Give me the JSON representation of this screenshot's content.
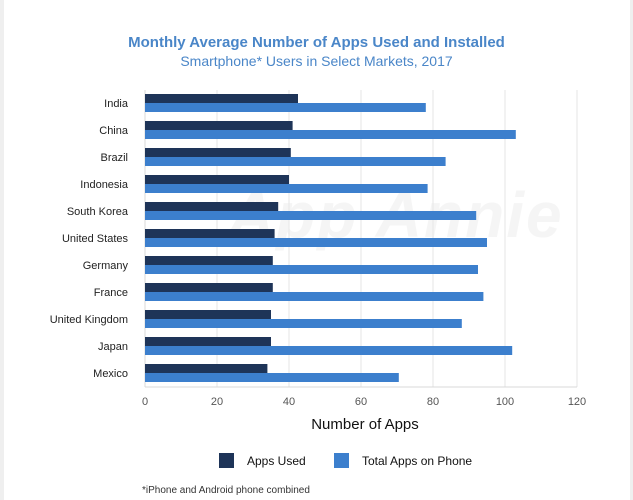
{
  "title": "Monthly Average Number of Apps Used and Installed",
  "subtitle": "Smartphone* Users in Select Markets, 2017",
  "footnote": "*iPhone and Android phone combined",
  "watermark": "App Annie",
  "colors": {
    "apps_used": "#1e3458",
    "total_apps": "#3c7fcd",
    "title": "#4a86c8"
  },
  "chart_data": {
    "type": "bar",
    "orientation": "horizontal",
    "categories": [
      "India",
      "China",
      "Brazil",
      "Indonesia",
      "South Korea",
      "United States",
      "Germany",
      "France",
      "United Kingdom",
      "Japan",
      "Mexico"
    ],
    "series": [
      {
        "name": "Apps Used",
        "values": [
          42.5,
          41,
          40.5,
          40,
          37,
          36,
          35.5,
          35.5,
          35,
          35,
          34
        ]
      },
      {
        "name": "Total Apps on Phone",
        "values": [
          78,
          103,
          83.5,
          78.5,
          92,
          95,
          92.5,
          94,
          88,
          102,
          70.5
        ]
      }
    ],
    "xlabel": "Number of Apps",
    "ylabel": "",
    "xlim": [
      0,
      120
    ],
    "xticks": [
      "0",
      "20",
      "40",
      "60",
      "80",
      "100",
      "120"
    ],
    "grid": "vertical",
    "legend_position": "bottom"
  }
}
